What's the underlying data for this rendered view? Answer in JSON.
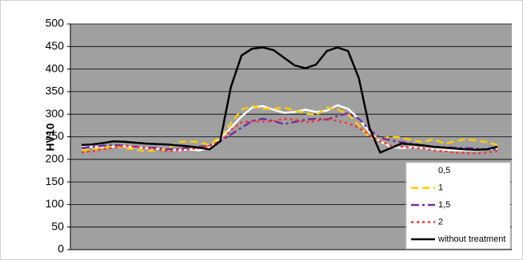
{
  "chart_data": {
    "type": "line",
    "y_label": "HV10",
    "categories": [
      null,
      null,
      null,
      null,
      null,
      null,
      null,
      null,
      null,
      null,
      null,
      null,
      null,
      null,
      null,
      null,
      null,
      null,
      null,
      null,
      null,
      null,
      null,
      null,
      null,
      null,
      null,
      null,
      null,
      null,
      null,
      null,
      null,
      null,
      null,
      null,
      null,
      null,
      null,
      null
    ],
    "ylim": [
      0,
      500
    ],
    "yticks": [
      0,
      50,
      100,
      150,
      200,
      250,
      300,
      350,
      400,
      450,
      500
    ],
    "grid": true,
    "legend": "bottom-right",
    "series": [
      {
        "name": "0,5",
        "color": "#ffffff",
        "dash": "solid",
        "values": [
          228,
          228,
          227,
          228,
          229,
          227,
          225,
          223,
          222,
          220,
          222,
          220,
          225,
          245,
          270,
          295,
          315,
          318,
          310,
          303,
          305,
          310,
          305,
          308,
          320,
          312,
          290,
          260,
          240,
          228,
          225,
          227,
          225,
          222,
          221,
          220,
          220,
          220,
          222,
          225
        ]
      },
      {
        "name": "1",
        "color": "#ffcc00",
        "dash": "dash",
        "values": [
          220,
          222,
          225,
          230,
          225,
          222,
          218,
          220,
          222,
          238,
          240,
          238,
          232,
          250,
          280,
          310,
          318,
          312,
          312,
          315,
          308,
          302,
          298,
          315,
          310,
          300,
          275,
          248,
          245,
          250,
          248,
          243,
          238,
          245,
          235,
          240,
          245,
          242,
          238,
          232
        ]
      },
      {
        "name": "1,5",
        "color": "#7030a0",
        "dash": "dashdot",
        "values": [
          225,
          228,
          230,
          232,
          230,
          228,
          226,
          225,
          222,
          223,
          226,
          228,
          230,
          240,
          255,
          270,
          285,
          290,
          285,
          278,
          283,
          288,
          290,
          288,
          296,
          302,
          290,
          265,
          248,
          242,
          238,
          235,
          230,
          228,
          227,
          226,
          225,
          224,
          222,
          222
        ]
      },
      {
        "name": "2",
        "color": "#ff3333",
        "dash": "dot",
        "values": [
          215,
          218,
          222,
          226,
          230,
          228,
          225,
          222,
          218,
          220,
          222,
          225,
          230,
          240,
          265,
          282,
          285,
          283,
          285,
          290,
          288,
          282,
          285,
          290,
          285,
          280,
          270,
          255,
          240,
          230,
          228,
          226,
          225,
          220,
          218,
          215,
          214,
          213,
          215,
          218
        ]
      },
      {
        "name": "without treatment",
        "color": "#000000",
        "dash": "solid",
        "values": [
          232,
          233,
          236,
          240,
          239,
          237,
          235,
          234,
          233,
          231,
          229,
          226,
          222,
          240,
          360,
          430,
          445,
          448,
          442,
          425,
          408,
          402,
          410,
          440,
          448,
          440,
          380,
          270,
          215,
          225,
          235,
          233,
          231,
          228,
          226,
          224,
          222,
          221,
          222,
          228
        ]
      }
    ]
  }
}
